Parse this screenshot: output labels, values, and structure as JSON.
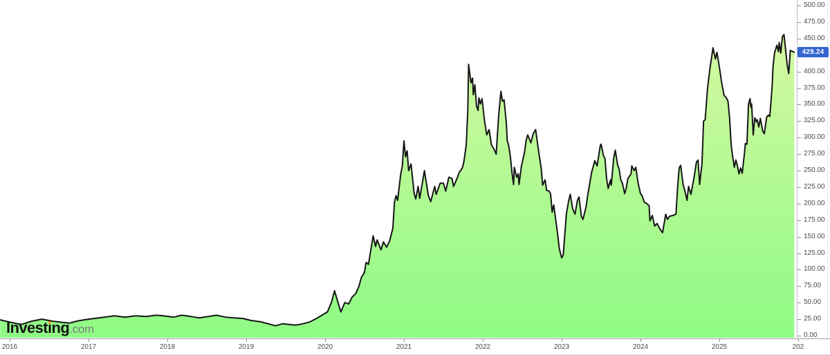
{
  "logo": {
    "text_before_i": "Invest",
    "dotted_i": "i",
    "text_after_i": "ng",
    "suffix": ".com"
  },
  "current_price": {
    "label": "429.24"
  },
  "price_scale": {
    "tick_labels": [
      "500.00",
      "475.00",
      "450.00",
      "400.00",
      "375.00",
      "350.00",
      "325.00",
      "300.00",
      "275.00",
      "250.00",
      "225.00",
      "200.00",
      "175.00",
      "150.00",
      "125.00",
      "100.00",
      "75.00",
      "50.00",
      "25.00",
      "0.00"
    ]
  },
  "time_scale": {
    "tick_labels": [
      "2016",
      "2017",
      "2018",
      "2019",
      "2020",
      "2021",
      "2022",
      "2023",
      "2024",
      "2025",
      "202"
    ]
  },
  "colors": {
    "area_top": "#ddf7a5",
    "area_bottom": "#8efb84",
    "line": "#151515",
    "price_tag_bg": "#3465d1",
    "price_tag_text": "#ffffff",
    "axis_text": "#4a4a4a",
    "logo_dot": "#f7931e"
  },
  "chart_data": {
    "type": "area",
    "title": "",
    "xlabel": "",
    "ylabel": "",
    "x_range": [
      2015.88,
      2026.0
    ],
    "ylim": [
      0,
      500
    ],
    "y_tick_step": 25,
    "grid": false,
    "legend": "none",
    "last_price": 429.24,
    "x_unit": "year",
    "series": [
      {
        "name": "price",
        "points": [
          [
            2015.88,
            24
          ],
          [
            2016.02,
            20
          ],
          [
            2016.15,
            17
          ],
          [
            2016.28,
            22
          ],
          [
            2016.41,
            25
          ],
          [
            2016.54,
            22
          ],
          [
            2016.68,
            20
          ],
          [
            2016.76,
            19
          ],
          [
            2016.85,
            22
          ],
          [
            2016.94,
            24
          ],
          [
            2017.07,
            26
          ],
          [
            2017.2,
            28
          ],
          [
            2017.33,
            30
          ],
          [
            2017.46,
            28
          ],
          [
            2017.6,
            30
          ],
          [
            2017.73,
            29
          ],
          [
            2017.86,
            31
          ],
          [
            2017.95,
            30
          ],
          [
            2018.08,
            28
          ],
          [
            2018.18,
            31
          ],
          [
            2018.3,
            29
          ],
          [
            2018.4,
            27
          ],
          [
            2018.52,
            29
          ],
          [
            2018.62,
            31
          ],
          [
            2018.74,
            28
          ],
          [
            2018.84,
            27
          ],
          [
            2018.96,
            26
          ],
          [
            2019.06,
            23
          ],
          [
            2019.18,
            21
          ],
          [
            2019.28,
            18
          ],
          [
            2019.37,
            15
          ],
          [
            2019.46,
            18
          ],
          [
            2019.54,
            17
          ],
          [
            2019.63,
            16
          ],
          [
            2019.72,
            18
          ],
          [
            2019.81,
            21
          ],
          [
            2019.89,
            26
          ],
          [
            2019.96,
            31
          ],
          [
            2020.03,
            36
          ],
          [
            2020.08,
            50
          ],
          [
            2020.12,
            68
          ],
          [
            2020.16,
            52
          ],
          [
            2020.2,
            36
          ],
          [
            2020.25,
            50
          ],
          [
            2020.3,
            48
          ],
          [
            2020.34,
            58
          ],
          [
            2020.39,
            64
          ],
          [
            2020.43,
            75
          ],
          [
            2020.46,
            88
          ],
          [
            2020.5,
            96
          ],
          [
            2020.52,
            111
          ],
          [
            2020.55,
            108
          ],
          [
            2020.61,
            151
          ],
          [
            2020.64,
            135
          ],
          [
            2020.66,
            145
          ],
          [
            2020.71,
            130
          ],
          [
            2020.74,
            142
          ],
          [
            2020.78,
            134
          ],
          [
            2020.82,
            144
          ],
          [
            2020.86,
            163
          ],
          [
            2020.88,
            202
          ],
          [
            2020.9,
            212
          ],
          [
            2020.92,
            205
          ],
          [
            2020.96,
            245
          ],
          [
            2020.98,
            257
          ],
          [
            2021.0,
            295
          ],
          [
            2021.02,
            271
          ],
          [
            2021.04,
            280
          ],
          [
            2021.06,
            250
          ],
          [
            2021.09,
            260
          ],
          [
            2021.13,
            215
          ],
          [
            2021.15,
            207
          ],
          [
            2021.18,
            226
          ],
          [
            2021.2,
            208
          ],
          [
            2021.24,
            236
          ],
          [
            2021.26,
            250
          ],
          [
            2021.31,
            212
          ],
          [
            2021.34,
            203
          ],
          [
            2021.39,
            226
          ],
          [
            2021.41,
            214
          ],
          [
            2021.46,
            231
          ],
          [
            2021.5,
            231
          ],
          [
            2021.53,
            219
          ],
          [
            2021.57,
            240
          ],
          [
            2021.61,
            238
          ],
          [
            2021.63,
            226
          ],
          [
            2021.68,
            240
          ],
          [
            2021.7,
            247
          ],
          [
            2021.74,
            254
          ],
          [
            2021.76,
            263
          ],
          [
            2021.79,
            289
          ],
          [
            2021.81,
            340
          ],
          [
            2021.82,
            411
          ],
          [
            2021.85,
            383
          ],
          [
            2021.87,
            390
          ],
          [
            2021.88,
            365
          ],
          [
            2021.9,
            380
          ],
          [
            2021.92,
            348
          ],
          [
            2021.94,
            341
          ],
          [
            2021.95,
            360
          ],
          [
            2021.97,
            351
          ],
          [
            2021.99,
            359
          ],
          [
            2022.02,
            327
          ],
          [
            2022.05,
            304
          ],
          [
            2022.08,
            312
          ],
          [
            2022.11,
            289
          ],
          [
            2022.14,
            283
          ],
          [
            2022.17,
            275
          ],
          [
            2022.2,
            331
          ],
          [
            2022.23,
            370
          ],
          [
            2022.25,
            355
          ],
          [
            2022.27,
            357
          ],
          [
            2022.3,
            320
          ],
          [
            2022.31,
            296
          ],
          [
            2022.33,
            287
          ],
          [
            2022.35,
            271
          ],
          [
            2022.37,
            247
          ],
          [
            2022.39,
            229
          ],
          [
            2022.4,
            255
          ],
          [
            2022.43,
            240
          ],
          [
            2022.45,
            245
          ],
          [
            2022.46,
            229
          ],
          [
            2022.49,
            257
          ],
          [
            2022.53,
            278
          ],
          [
            2022.55,
            296
          ],
          [
            2022.57,
            304
          ],
          [
            2022.61,
            292
          ],
          [
            2022.64,
            306
          ],
          [
            2022.67,
            312
          ],
          [
            2022.71,
            278
          ],
          [
            2022.74,
            254
          ],
          [
            2022.76,
            228
          ],
          [
            2022.79,
            236
          ],
          [
            2022.81,
            220
          ],
          [
            2022.84,
            219
          ],
          [
            2022.86,
            215
          ],
          [
            2022.88,
            187
          ],
          [
            2022.9,
            198
          ],
          [
            2022.95,
            153
          ],
          [
            2022.97,
            132
          ],
          [
            2023.0,
            118
          ],
          [
            2023.02,
            122
          ],
          [
            2023.04,
            153
          ],
          [
            2023.06,
            184
          ],
          [
            2023.09,
            205
          ],
          [
            2023.11,
            214
          ],
          [
            2023.14,
            192
          ],
          [
            2023.17,
            184
          ],
          [
            2023.2,
            205
          ],
          [
            2023.22,
            210
          ],
          [
            2023.25,
            181
          ],
          [
            2023.27,
            176
          ],
          [
            2023.31,
            195
          ],
          [
            2023.33,
            212
          ],
          [
            2023.38,
            247
          ],
          [
            2023.42,
            265
          ],
          [
            2023.45,
            257
          ],
          [
            2023.49,
            288
          ],
          [
            2023.5,
            290
          ],
          [
            2023.53,
            273
          ],
          [
            2023.55,
            268
          ],
          [
            2023.57,
            238
          ],
          [
            2023.59,
            223
          ],
          [
            2023.62,
            236
          ],
          [
            2023.63,
            228
          ],
          [
            2023.66,
            268
          ],
          [
            2023.68,
            281
          ],
          [
            2023.71,
            259
          ],
          [
            2023.73,
            252
          ],
          [
            2023.75,
            236
          ],
          [
            2023.77,
            231
          ],
          [
            2023.8,
            215
          ],
          [
            2023.82,
            224
          ],
          [
            2023.84,
            238
          ],
          [
            2023.88,
            245
          ],
          [
            2023.89,
            257
          ],
          [
            2023.92,
            250
          ],
          [
            2023.94,
            255
          ],
          [
            2023.97,
            231
          ],
          [
            2024.0,
            215
          ],
          [
            2024.02,
            212
          ],
          [
            2024.05,
            202
          ],
          [
            2024.08,
            200
          ],
          [
            2024.11,
            197
          ],
          [
            2024.12,
            174
          ],
          [
            2024.15,
            182
          ],
          [
            2024.18,
            166
          ],
          [
            2024.21,
            170
          ],
          [
            2024.25,
            161
          ],
          [
            2024.28,
            156
          ],
          [
            2024.32,
            184
          ],
          [
            2024.34,
            176
          ],
          [
            2024.37,
            181
          ],
          [
            2024.41,
            182
          ],
          [
            2024.45,
            184
          ],
          [
            2024.47,
            223
          ],
          [
            2024.49,
            254
          ],
          [
            2024.51,
            258
          ],
          [
            2024.54,
            229
          ],
          [
            2024.56,
            221
          ],
          [
            2024.59,
            205
          ],
          [
            2024.61,
            226
          ],
          [
            2024.64,
            214
          ],
          [
            2024.68,
            240
          ],
          [
            2024.71,
            263
          ],
          [
            2024.73,
            266
          ],
          [
            2024.75,
            229
          ],
          [
            2024.78,
            260
          ],
          [
            2024.8,
            325
          ],
          [
            2024.82,
            327
          ],
          [
            2024.85,
            374
          ],
          [
            2024.88,
            404
          ],
          [
            2024.92,
            436
          ],
          [
            2024.95,
            419
          ],
          [
            2024.97,
            429
          ],
          [
            2025.0,
            407
          ],
          [
            2025.03,
            383
          ],
          [
            2025.06,
            364
          ],
          [
            2025.09,
            360
          ],
          [
            2025.11,
            355
          ],
          [
            2025.13,
            330
          ],
          [
            2025.15,
            289
          ],
          [
            2025.17,
            270
          ],
          [
            2025.19,
            255
          ],
          [
            2025.21,
            266
          ],
          [
            2025.23,
            257
          ],
          [
            2025.25,
            245
          ],
          [
            2025.27,
            254
          ],
          [
            2025.29,
            246
          ],
          [
            2025.32,
            278
          ],
          [
            2025.33,
            291
          ],
          [
            2025.35,
            290
          ],
          [
            2025.37,
            351
          ],
          [
            2025.39,
            359
          ],
          [
            2025.4,
            346
          ],
          [
            2025.41,
            351
          ],
          [
            2025.43,
            304
          ],
          [
            2025.45,
            330
          ],
          [
            2025.47,
            324
          ],
          [
            2025.48,
            327
          ],
          [
            2025.5,
            316
          ],
          [
            2025.52,
            329
          ],
          [
            2025.55,
            310
          ],
          [
            2025.57,
            306
          ],
          [
            2025.6,
            331
          ],
          [
            2025.62,
            334
          ],
          [
            2025.64,
            332
          ],
          [
            2025.67,
            378
          ],
          [
            2025.68,
            406
          ],
          [
            2025.7,
            428
          ],
          [
            2025.73,
            440
          ],
          [
            2025.75,
            430
          ],
          [
            2025.76,
            444
          ],
          [
            2025.78,
            428
          ],
          [
            2025.8,
            453
          ],
          [
            2025.82,
            456
          ],
          [
            2025.84,
            433
          ],
          [
            2025.86,
            411
          ],
          [
            2025.88,
            397
          ],
          [
            2025.9,
            432
          ],
          [
            2025.92,
            431
          ],
          [
            2025.95,
            429.24
          ]
        ]
      }
    ]
  }
}
